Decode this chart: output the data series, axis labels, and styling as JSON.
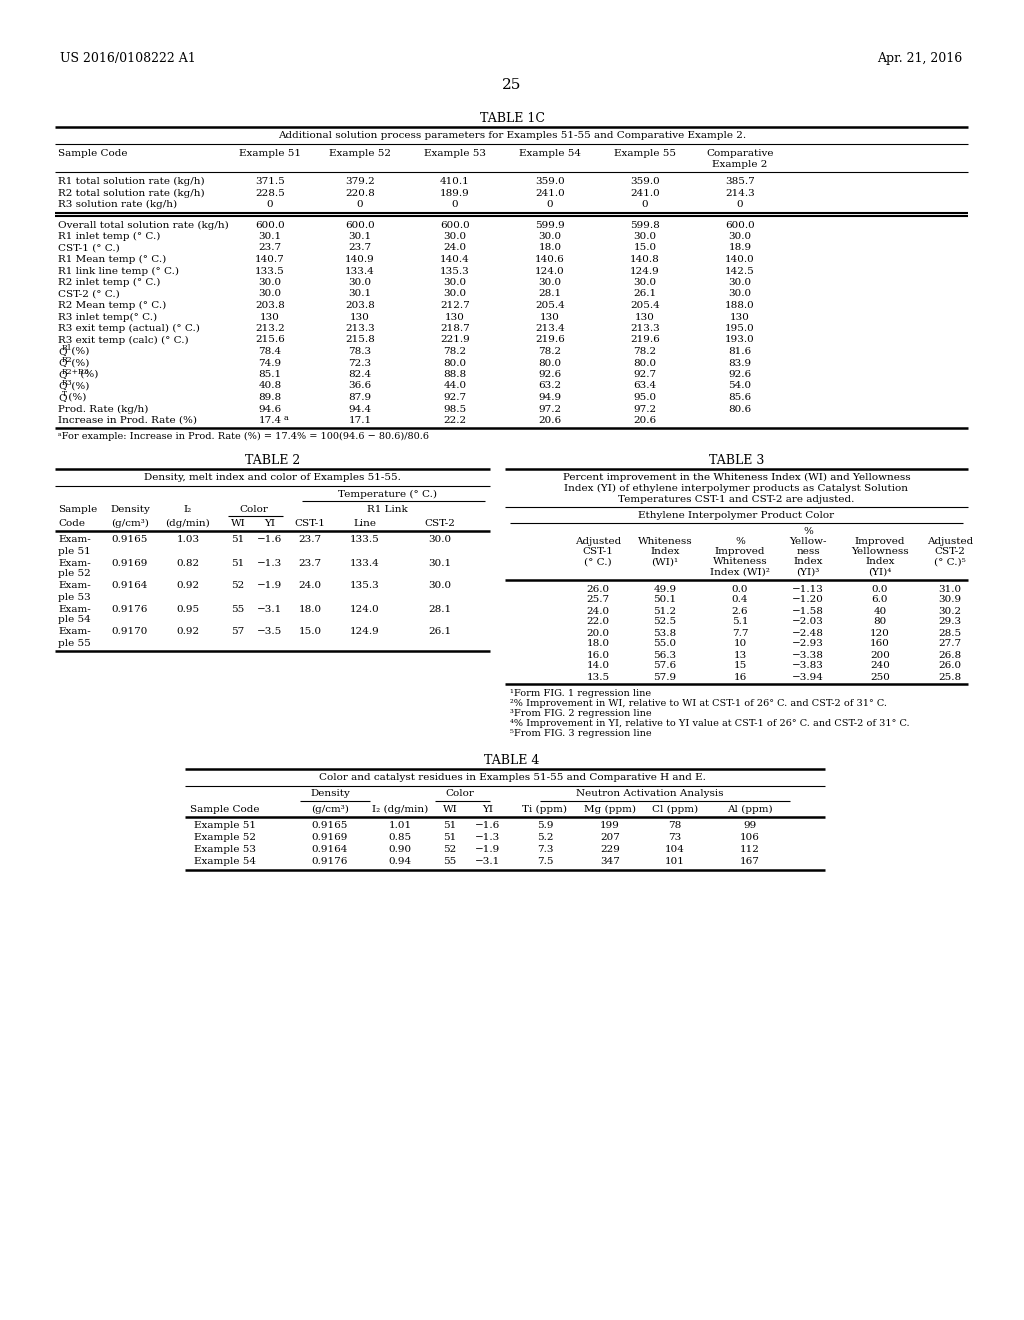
{
  "header_left": "US 2016/0108222 A1",
  "header_right": "Apr. 21, 2016",
  "page_number": "25",
  "bg_color": "#ffffff",
  "table1c_title": "TABLE 1C",
  "table1c_subtitle": "Additional solution process parameters for Examples 51-55 and Comparative Example 2.",
  "table1c_rows": [
    [
      "R1 total solution rate (kg/h)",
      "371.5",
      "379.2",
      "410.1",
      "359.0",
      "359.0",
      "385.7"
    ],
    [
      "R2 total solution rate (kg/h)",
      "228.5",
      "220.8",
      "189.9",
      "241.0",
      "241.0",
      "214.3"
    ],
    [
      "R3 solution rate (kg/h)",
      "0",
      "0",
      "0",
      "0",
      "0",
      "0"
    ],
    [
      "SEP",
      "",
      "",
      "",
      "",
      "",
      ""
    ],
    [
      "Overall total solution rate (kg/h)",
      "600.0",
      "600.0",
      "600.0",
      "599.9",
      "599.8",
      "600.0"
    ],
    [
      "R1 inlet temp (° C.)",
      "30.1",
      "30.1",
      "30.0",
      "30.0",
      "30.0",
      "30.0"
    ],
    [
      "CST-1 (° C.)",
      "23.7",
      "23.7",
      "24.0",
      "18.0",
      "15.0",
      "18.9"
    ],
    [
      "R1 Mean temp (° C.)",
      "140.7",
      "140.9",
      "140.4",
      "140.6",
      "140.8",
      "140.0"
    ],
    [
      "R1 link line temp (° C.)",
      "133.5",
      "133.4",
      "135.3",
      "124.0",
      "124.9",
      "142.5"
    ],
    [
      "R2 inlet temp (° C.)",
      "30.0",
      "30.0",
      "30.0",
      "30.0",
      "30.0",
      "30.0"
    ],
    [
      "CST-2 (° C.)",
      "30.0",
      "30.1",
      "30.0",
      "28.1",
      "26.1",
      "30.0"
    ],
    [
      "R2 Mean temp (° C.)",
      "203.8",
      "203.8",
      "212.7",
      "205.4",
      "205.4",
      "188.0"
    ],
    [
      "R3 inlet temp(° C.)",
      "130",
      "130",
      "130",
      "130",
      "130",
      "130"
    ],
    [
      "R3 exit temp (actual) (° C.)",
      "213.2",
      "213.3",
      "218.7",
      "213.4",
      "213.3",
      "195.0"
    ],
    [
      "R3 exit temp (calc) (° C.)",
      "215.6",
      "215.8",
      "221.9",
      "219.6",
      "219.6",
      "193.0"
    ],
    [
      "Q^R1 (%)",
      "78.4",
      "78.3",
      "78.2",
      "78.2",
      "78.2",
      "81.6"
    ],
    [
      "Q^R2 (%)",
      "74.9",
      "72.3",
      "80.0",
      "80.0",
      "80.0",
      "83.9"
    ],
    [
      "Q^R2+R3 (%)",
      "85.1",
      "82.4",
      "88.8",
      "92.6",
      "92.7",
      "92.6"
    ],
    [
      "Q^R3 (%)",
      "40.8",
      "36.6",
      "44.0",
      "63.2",
      "63.4",
      "54.0"
    ],
    [
      "Q^T (%)",
      "89.8",
      "87.9",
      "92.7",
      "94.9",
      "95.0",
      "85.6"
    ],
    [
      "Prod. Rate (kg/h)",
      "94.6",
      "94.4",
      "98.5",
      "97.2",
      "97.2",
      "80.6"
    ],
    [
      "Increase in Prod. Rate (%)",
      "17.4^a",
      "17.1",
      "22.2",
      "20.6",
      "20.6",
      ""
    ]
  ],
  "table1c_footnote": "^aFor example: Increase in Prod. Rate (%) = 17.4% = 100(94.6 − 80.6)/80.6",
  "table2_title": "TABLE 2",
  "table2_subtitle": "Density, melt index and color of Examples 51-55.",
  "table2_temp_header": "Temperature (° C.)",
  "table2_rows": [
    [
      "Exam-",
      "ple 51",
      "0.9165",
      "1.03",
      "51",
      "−1.6",
      "23.7",
      "133.5",
      "30.0"
    ],
    [
      "Exam-",
      "ple 52",
      "0.9169",
      "0.82",
      "51",
      "−1.3",
      "23.7",
      "133.4",
      "30.1"
    ],
    [
      "Exam-",
      "ple 53",
      "0.9164",
      "0.92",
      "52",
      "−1.9",
      "24.0",
      "135.3",
      "30.0"
    ],
    [
      "Exam-",
      "ple 54",
      "0.9176",
      "0.95",
      "55",
      "−3.1",
      "18.0",
      "124.0",
      "28.1"
    ],
    [
      "Exam-",
      "ple 55",
      "0.9170",
      "0.92",
      "57",
      "−3.5",
      "15.0",
      "124.9",
      "26.1"
    ]
  ],
  "table3_title": "TABLE 3",
  "table3_subtitle_1": "Percent improvement in the Whiteness Index (WI) and Yellowness",
  "table3_subtitle_2": "Index (YI) of ethylene interpolymer products as Catalyst Solution",
  "table3_subtitle_3": "Temperatures CST-1 and CST-2 are adjusted.",
  "table3_subheader": "Ethylene Interpolymer Product Color",
  "table3_rows": [
    [
      "26.0",
      "49.9",
      "0.0",
      "−1.13",
      "0.0",
      "31.0"
    ],
    [
      "25.7",
      "50.1",
      "0.4",
      "−1.20",
      "6.0",
      "30.9"
    ],
    [
      "24.0",
      "51.2",
      "2.6",
      "−1.58",
      "40",
      "30.2"
    ],
    [
      "22.0",
      "52.5",
      "5.1",
      "−2.03",
      "80",
      "29.3"
    ],
    [
      "20.0",
      "53.8",
      "7.7",
      "−2.48",
      "120",
      "28.5"
    ],
    [
      "18.0",
      "55.0",
      "10",
      "−2.93",
      "160",
      "27.7"
    ],
    [
      "16.0",
      "56.3",
      "13",
      "−3.38",
      "200",
      "26.8"
    ],
    [
      "14.0",
      "57.6",
      "15",
      "−3.83",
      "240",
      "26.0"
    ],
    [
      "13.5",
      "57.9",
      "16",
      "−3.94",
      "250",
      "25.8"
    ]
  ],
  "table3_footnotes": [
    "^1Form FIG. 1 regression line",
    "^2% Improvement in WI, relative to WI at CST-1 of 26° C. and CST-2 of 31° C.",
    "^3From FIG. 2 regression line",
    "^4% Improvement in YI, relative to YI value at CST-1 of 26° C. and CST-2 of 31° C.",
    "^5From FIG. 3 regression line"
  ],
  "table4_title": "TABLE 4",
  "table4_subtitle": "Color and catalyst residues in Examples 51-55 and Comparative H and E.",
  "table4_rows": [
    [
      "Example 51",
      "0.9165",
      "1.01",
      "51",
      "−1.6",
      "5.9",
      "199",
      "78",
      "99"
    ],
    [
      "Example 52",
      "0.9169",
      "0.85",
      "51",
      "−1.3",
      "5.2",
      "207",
      "73",
      "106"
    ],
    [
      "Example 53",
      "0.9164",
      "0.90",
      "52",
      "−1.9",
      "7.3",
      "229",
      "104",
      "112"
    ],
    [
      "Example 54",
      "0.9176",
      "0.94",
      "55",
      "−3.1",
      "7.5",
      "347",
      "101",
      "167"
    ]
  ]
}
